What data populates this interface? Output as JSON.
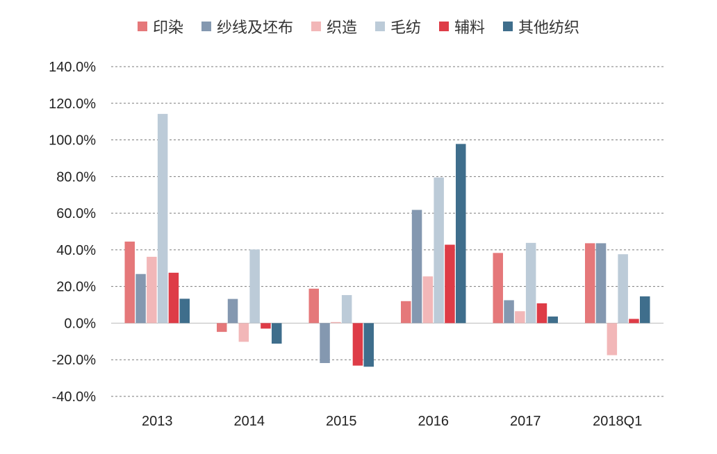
{
  "chart_data": {
    "type": "bar",
    "categories": [
      "2013",
      "2014",
      "2015",
      "2016",
      "2017",
      "2018Q1"
    ],
    "series": [
      {
        "name": "印染",
        "color": "#E5787A",
        "values": [
          44.5,
          -4.8,
          18.8,
          12.0,
          38.3,
          43.6
        ]
      },
      {
        "name": "纱线及坯布",
        "color": "#8498B0",
        "values": [
          26.8,
          13.2,
          -21.8,
          61.8,
          12.5,
          43.6
        ]
      },
      {
        "name": "织造",
        "color": "#F2B7B8",
        "values": [
          36.2,
          -10.2,
          0.6,
          25.5,
          6.5,
          -17.5
        ]
      },
      {
        "name": "毛纺",
        "color": "#BCCBD8",
        "values": [
          114.2,
          40.2,
          15.3,
          79.5,
          43.8,
          37.6
        ]
      },
      {
        "name": "辅料",
        "color": "#DE3C47",
        "values": [
          27.5,
          -3.0,
          -23.2,
          42.8,
          10.8,
          2.3
        ]
      },
      {
        "name": "其他纺织",
        "color": "#3F6E8C",
        "values": [
          13.3,
          -11.2,
          -23.8,
          97.8,
          3.6,
          14.6
        ]
      }
    ],
    "yticks": [
      "140.0%",
      "120.0%",
      "100.0%",
      "80.0%",
      "60.0%",
      "40.0%",
      "20.0%",
      "0.0%",
      "-20.0%",
      "-40.0%"
    ],
    "ylim": [
      -40,
      140
    ],
    "ytick_step": 20,
    "grid": true,
    "legend_position": "top"
  }
}
